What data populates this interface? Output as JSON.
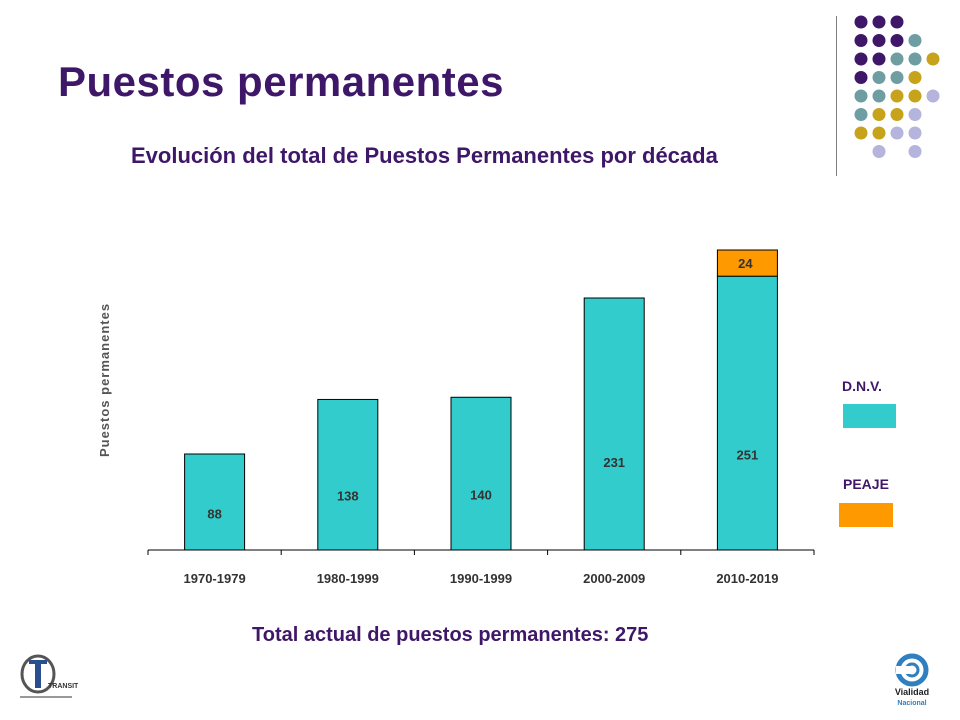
{
  "slide": {
    "title": "Puestos permanentes",
    "subtitle": "Evolución del total de Puestos Permanentes por década",
    "footer": "Total actual de puestos permanentes: 275"
  },
  "legend": {
    "items": [
      {
        "label": "D.N.V.",
        "color": "#33cccc"
      },
      {
        "label": "PEAJE",
        "color": "#ff9900"
      }
    ]
  },
  "decor": {
    "dot_colors": [
      "#3f1769",
      "#6e9ea2",
      "#c7a21b",
      "#b4b4dc"
    ],
    "logo_left_text": "TRANSITO",
    "logo_right_text": "Vialidad Nacional"
  },
  "chart_data": {
    "type": "bar",
    "stacked": true,
    "title": "",
    "xlabel": "",
    "ylabel": "Puestos permanentes",
    "ylim": [
      0,
      275
    ],
    "grid": false,
    "legend_position": "right",
    "categories": [
      "1970-1979",
      "1980-1999",
      "1990-1999",
      "2000-2009",
      "2010-2019"
    ],
    "series": [
      {
        "name": "D.N.V.",
        "color": "#33cccc",
        "values": [
          88,
          138,
          140,
          231,
          251
        ]
      },
      {
        "name": "PEAJE",
        "color": "#ff9900",
        "values": [
          0,
          0,
          0,
          0,
          24
        ]
      }
    ]
  }
}
